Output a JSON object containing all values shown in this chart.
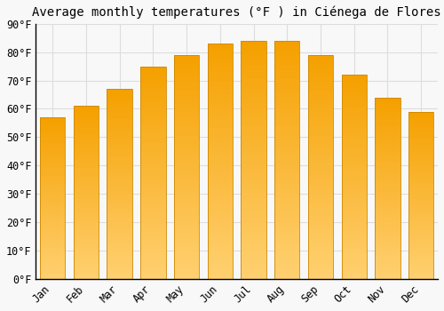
{
  "title": "Average monthly temperatures (°F ) in Ciénega de Flores",
  "months": [
    "Jan",
    "Feb",
    "Mar",
    "Apr",
    "May",
    "Jun",
    "Jul",
    "Aug",
    "Sep",
    "Oct",
    "Nov",
    "Dec"
  ],
  "values": [
    57,
    61,
    67,
    75,
    79,
    83,
    84,
    84,
    79,
    72,
    64,
    59
  ],
  "bar_color_top": "#F5A000",
  "bar_color_bottom": "#FFD070",
  "bar_edge_color": "#CC8800",
  "background_color": "#f8f8f8",
  "grid_color": "#dddddd",
  "ylim": [
    0,
    90
  ],
  "yticks": [
    0,
    10,
    20,
    30,
    40,
    50,
    60,
    70,
    80,
    90
  ],
  "ytick_labels": [
    "0°F",
    "10°F",
    "20°F",
    "30°F",
    "40°F",
    "50°F",
    "60°F",
    "70°F",
    "80°F",
    "90°F"
  ],
  "title_fontsize": 10,
  "tick_fontsize": 8.5,
  "font_family": "monospace"
}
